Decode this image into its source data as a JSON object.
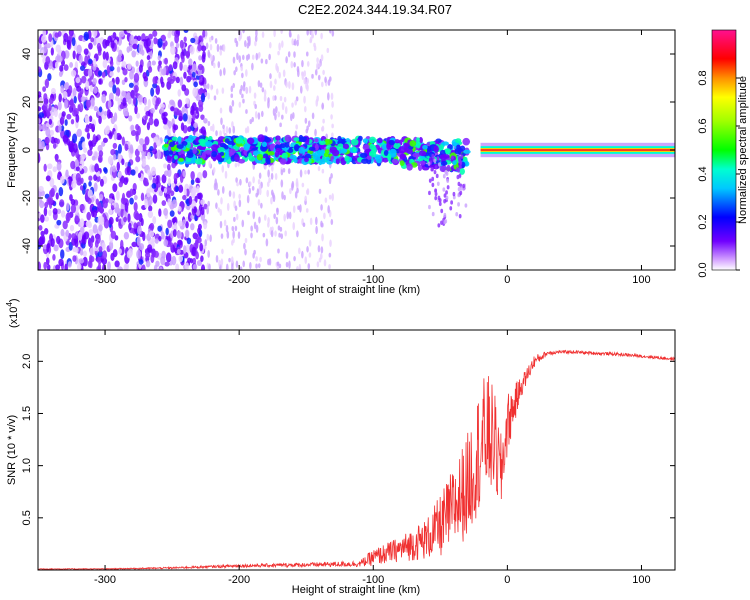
{
  "title": "C2E2.2024.344.19.34.R07",
  "chart_data": [
    {
      "type": "heatmap",
      "xlabel": "Height of straight line (km)",
      "ylabel": "Frequency (Hz)",
      "xlim": [
        -350,
        125
      ],
      "ylim": [
        -50,
        50
      ],
      "xticks": [
        -300,
        -200,
        -100,
        0,
        100
      ],
      "xtick_labels": [
        "-300",
        "-200",
        "-100",
        "0",
        "100"
      ],
      "yticks": [
        -40,
        -20,
        0,
        20,
        40
      ],
      "ytick_labels": [
        "-40",
        "-20",
        "0",
        "20",
        "40"
      ],
      "colorbar": {
        "label": "Normalized spectral amplitude",
        "range": [
          0.0,
          1.0
        ],
        "ticks": [
          0.0,
          0.2,
          0.4,
          0.6,
          0.8
        ],
        "tick_labels": [
          "0.0",
          "0.2",
          "0.4",
          "0.6",
          "0.8"
        ],
        "colormap": [
          "#ffffff",
          "#6f00ff",
          "#0000ff",
          "#00ffff",
          "#00ff00",
          "#ffff00",
          "#ff8000",
          "#ff0000",
          "#ff00c0"
        ]
      },
      "features": [
        {
          "x_range": [
            -350,
            -225
          ],
          "freq_range": [
            -50,
            50
          ],
          "amplitude": 0.08
        },
        {
          "x_range": [
            -225,
            -130
          ],
          "freq_range": [
            -50,
            50
          ],
          "amplitude": 0.03
        },
        {
          "x_range": [
            -255,
            -30
          ],
          "freq_range": [
            -10,
            8
          ],
          "amplitude": 0.25
        },
        {
          "x_range": [
            -20,
            125
          ],
          "freq_range": [
            -1,
            1
          ],
          "amplitude": 0.7
        }
      ]
    },
    {
      "type": "line",
      "xlabel": "Height of straight line (km)",
      "ylabel": "SNR (10 * v/v)",
      "y_multiplier_label": "(x10",
      "y_multiplier_exp": "4",
      "xlim": [
        -350,
        125
      ],
      "ylim": [
        0,
        2.3
      ],
      "xticks": [
        -300,
        -200,
        -100,
        0,
        100
      ],
      "xtick_labels": [
        "-300",
        "-200",
        "-100",
        "0",
        "100"
      ],
      "yticks": [
        0.5,
        1.0,
        1.5,
        2.0
      ],
      "ytick_labels": [
        "0.5",
        "1.0",
        "1.5",
        "2.0"
      ],
      "series": [
        {
          "color": "#f03030",
          "x": [
            -350,
            -300,
            -250,
            -200,
            -150,
            -110,
            -100,
            -80,
            -60,
            -50,
            -40,
            -30,
            -25,
            -20,
            -15,
            -10,
            -5,
            0,
            10,
            20,
            30,
            40,
            50,
            60,
            80,
            100,
            125
          ],
          "values": [
            0.01,
            0.01,
            0.02,
            0.04,
            0.05,
            0.06,
            0.12,
            0.2,
            0.3,
            0.42,
            0.6,
            0.8,
            1.0,
            1.2,
            1.3,
            1.25,
            0.9,
            1.4,
            1.75,
            2.0,
            2.08,
            2.09,
            2.09,
            2.08,
            2.07,
            2.05,
            2.02
          ],
          "noise_amp": [
            0.004,
            0.004,
            0.008,
            0.015,
            0.02,
            0.03,
            0.08,
            0.12,
            0.2,
            0.3,
            0.4,
            0.5,
            0.55,
            0.6,
            0.6,
            0.5,
            0.4,
            0.3,
            0.1,
            0.06,
            0.02,
            0.015,
            0.015,
            0.015,
            0.015,
            0.015,
            0.015
          ]
        }
      ]
    }
  ]
}
